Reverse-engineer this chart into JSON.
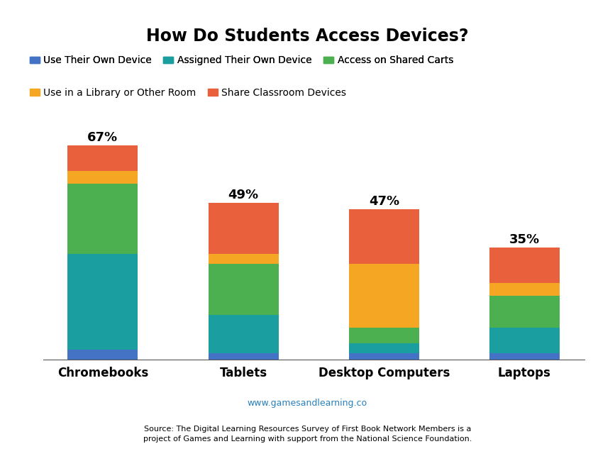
{
  "title": "How Do Students Access Devices?",
  "categories": [
    "Chromebooks",
    "Tablets",
    "Desktop Computers",
    "Laptops"
  ],
  "percentages": [
    "67%",
    "49%",
    "47%",
    "35%"
  ],
  "legend_labels": [
    "Use Their Own Device",
    "Assigned Their Own Device",
    "Access on Shared Carts",
    "Use in a Library or Other Room",
    "Share Classroom Devices"
  ],
  "colors": [
    "#4472C4",
    "#1A9EA0",
    "#4CAF50",
    "#F5A623",
    "#E8603C"
  ],
  "segments": {
    "Chromebooks": [
      3,
      30,
      22,
      4,
      8
    ],
    "Tablets": [
      2,
      12,
      16,
      3,
      16
    ],
    "Desktop Computers": [
      2,
      3,
      5,
      20,
      17
    ],
    "Laptops": [
      2,
      8,
      10,
      4,
      11
    ]
  },
  "source_url": "www.gamesandlearning.co",
  "source_text": "Source: The Digital Learning Resources Survey of First Book Network Members is a\nproject of Games and Learning with support from the National Science Foundation.",
  "background_color": "#FFFFFF",
  "title_fontsize": 17,
  "tick_fontsize": 12,
  "legend_fontsize": 10,
  "pct_fontsize": 13
}
